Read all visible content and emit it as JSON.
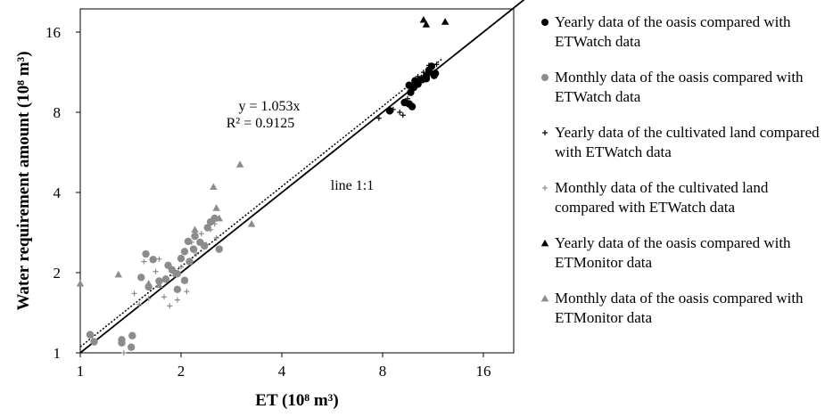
{
  "chart_data": {
    "type": "scatter",
    "title": "",
    "xlabel": "ET (10⁸ m³)",
    "ylabel": "Water requirement amount (10⁸ m³)",
    "x_scale": "log2",
    "y_scale": "log2",
    "xlim": [
      1,
      22
    ],
    "ylim": [
      1,
      22
    ],
    "x_ticks": [
      "1",
      "2",
      "4",
      "8",
      "16"
    ],
    "y_ticks": [
      "1",
      "2",
      "4",
      "8",
      "16"
    ],
    "grid": false,
    "legend_position": "right",
    "annotations": {
      "equation": "y = 1.053x",
      "r_squared": "R² = 0.9125",
      "line_label": "line 1:1"
    },
    "lines": [
      {
        "name": "line 1:1",
        "slope": 1.0,
        "style": "solid"
      },
      {
        "name": "y = 1.053x",
        "slope": 1.053,
        "style": "dotted"
      }
    ],
    "series": [
      {
        "name": "Yearly data of the oasis compared with ETWatch data",
        "marker": "circle",
        "color": "#000000",
        "points": [
          [
            8.4,
            8.1
          ],
          [
            9.3,
            8.7
          ],
          [
            9.6,
            8.6
          ],
          [
            9.8,
            8.4
          ],
          [
            9.7,
            9.5
          ],
          [
            10.2,
            10.2
          ],
          [
            9.6,
            10.1
          ],
          [
            10.0,
            10.5
          ],
          [
            10.5,
            10.6
          ],
          [
            10.8,
            10.9
          ],
          [
            11.0,
            11.5
          ],
          [
            11.2,
            11.9
          ],
          [
            11.4,
            11.0
          ],
          [
            11.5,
            11.2
          ],
          [
            10.8,
            10.7
          ],
          [
            9.9,
            9.9
          ]
        ]
      },
      {
        "name": "Monthly data of the oasis compared with ETWatch data",
        "marker": "circle",
        "color": "#8c8c8c",
        "points": [
          [
            1.07,
            1.17
          ],
          [
            1.1,
            1.1
          ],
          [
            1.33,
            1.12
          ],
          [
            1.33,
            1.09
          ],
          [
            1.42,
            1.05
          ],
          [
            1.43,
            1.16
          ],
          [
            1.52,
            1.92
          ],
          [
            1.57,
            2.35
          ],
          [
            1.6,
            1.77
          ],
          [
            1.65,
            2.24
          ],
          [
            1.72,
            1.86
          ],
          [
            1.8,
            1.89
          ],
          [
            1.83,
            2.13
          ],
          [
            1.88,
            2.05
          ],
          [
            1.95,
            1.98
          ],
          [
            2.0,
            2.26
          ],
          [
            2.05,
            2.4
          ],
          [
            2.1,
            2.62
          ],
          [
            2.12,
            2.2
          ],
          [
            2.18,
            2.45
          ],
          [
            2.2,
            2.74
          ],
          [
            2.28,
            2.6
          ],
          [
            2.35,
            2.52
          ],
          [
            2.4,
            2.95
          ],
          [
            2.45,
            3.1
          ],
          [
            2.52,
            3.2
          ],
          [
            2.6,
            2.45
          ],
          [
            1.95,
            1.73
          ],
          [
            2.05,
            1.87
          ]
        ]
      },
      {
        "name": "Yearly data of the cultivated land compared with ETWatch data",
        "marker": "plus",
        "color": "#000000",
        "points": [
          [
            7.8,
            7.6
          ],
          [
            8.6,
            8.2
          ],
          [
            9.0,
            8.0
          ],
          [
            9.2,
            7.8
          ],
          [
            9.5,
            9.0
          ],
          [
            9.8,
            10.1
          ],
          [
            10.2,
            10.9
          ],
          [
            10.6,
            11.3
          ],
          [
            11.0,
            12.0
          ],
          [
            11.6,
            12.1
          ]
        ]
      },
      {
        "name": "Monthly data of the cultivated land compared with ETWatch data",
        "marker": "plus",
        "color": "#8c8c8c",
        "points": [
          [
            1.35,
            1.0
          ],
          [
            1.45,
            1.67
          ],
          [
            1.55,
            2.2
          ],
          [
            1.6,
            1.6
          ],
          [
            1.68,
            2.02
          ],
          [
            1.72,
            2.25
          ],
          [
            1.78,
            1.62
          ],
          [
            1.85,
            1.5
          ],
          [
            1.9,
            1.95
          ],
          [
            1.95,
            1.58
          ],
          [
            2.0,
            2.1
          ],
          [
            2.08,
            1.7
          ],
          [
            2.15,
            2.6
          ],
          [
            2.22,
            2.35
          ],
          [
            2.3,
            2.8
          ],
          [
            2.38,
            2.55
          ],
          [
            2.45,
            2.9
          ],
          [
            2.52,
            3.05
          ],
          [
            2.55,
            2.7
          ],
          [
            1.5,
            1.52
          ]
        ]
      },
      {
        "name": "Yearly data of the oasis compared with ETMonitor data",
        "marker": "triangle",
        "color": "#000000",
        "points": [
          [
            10.6,
            17.8
          ],
          [
            10.8,
            17.1
          ],
          [
            12.3,
            17.5
          ]
        ]
      },
      {
        "name": "Monthly data of the oasis compared with ETMonitor data",
        "marker": "triangle",
        "color": "#8c8c8c",
        "points": [
          [
            1.0,
            1.82
          ],
          [
            1.3,
            1.97
          ],
          [
            1.6,
            1.82
          ],
          [
            2.5,
            4.2
          ],
          [
            2.55,
            3.5
          ],
          [
            2.6,
            3.2
          ],
          [
            3.0,
            5.1
          ],
          [
            2.2,
            2.9
          ],
          [
            3.25,
            3.05
          ],
          [
            1.72,
            1.8
          ]
        ]
      }
    ]
  }
}
